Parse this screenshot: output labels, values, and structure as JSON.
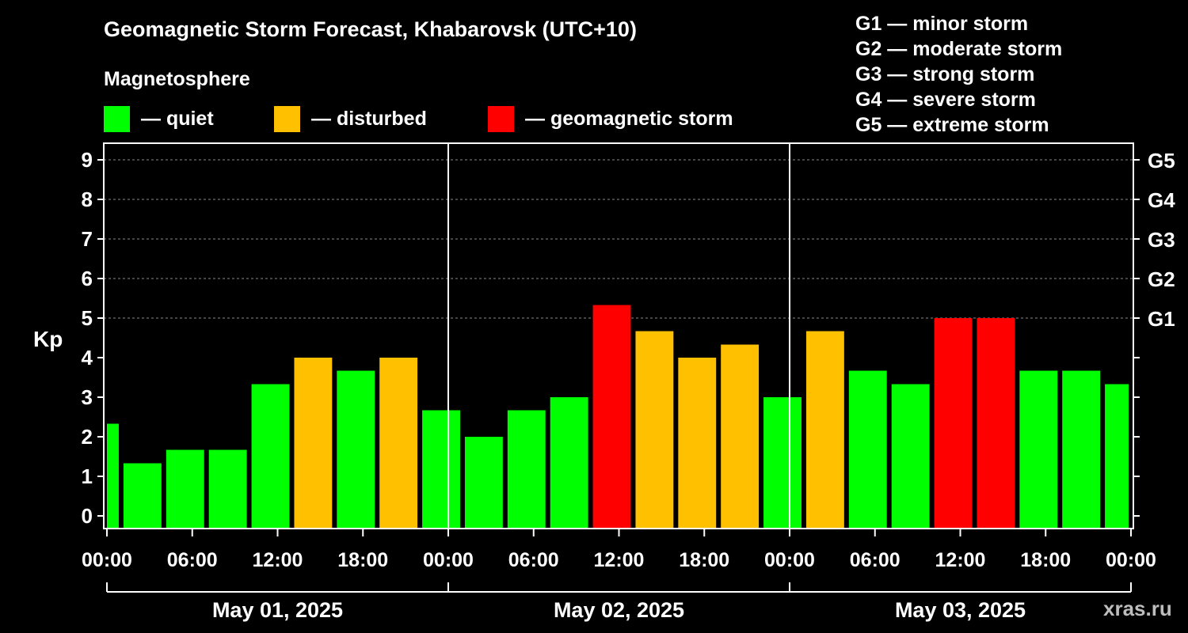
{
  "header": {
    "title": "Geomagnetic Storm Forecast, Khabarovsk (UTC+10)",
    "subtitle": "Magnetosphere"
  },
  "legend": [
    {
      "label": "— quiet",
      "color": "#00ff00"
    },
    {
      "label": "— disturbed",
      "color": "#ffc000"
    },
    {
      "label": "— geomagnetic storm",
      "color": "#ff0000"
    }
  ],
  "g_legend": [
    "G1 — minor storm",
    "G2 — moderate storm",
    "G3 — strong storm",
    "G4 — severe storm",
    "G5 — extreme storm"
  ],
  "watermark": "xras.ru",
  "chart_data": {
    "type": "bar",
    "title": "Geomagnetic Storm Forecast, Khabarovsk (UTC+10)",
    "ylabel": "Kp",
    "ylim": [
      0,
      9
    ],
    "yticks": [
      "0",
      "1",
      "2",
      "3",
      "4",
      "5",
      "6",
      "7",
      "8",
      "9"
    ],
    "right_ticks": [
      {
        "kp": 5,
        "label": "G1"
      },
      {
        "kp": 6,
        "label": "G2"
      },
      {
        "kp": 7,
        "label": "G3"
      },
      {
        "kp": 8,
        "label": "G4"
      },
      {
        "kp": 9,
        "label": "G5"
      }
    ],
    "grid": true,
    "x_range_hours": [
      0,
      72
    ],
    "xtick_labels": [
      "00:00",
      "06:00",
      "12:00",
      "18:00",
      "00:00",
      "06:00",
      "12:00",
      "18:00",
      "00:00",
      "06:00",
      "12:00",
      "18:00",
      "00:00"
    ],
    "days": [
      "May 01, 2025",
      "May 02, 2025",
      "May 03, 2025"
    ],
    "colors": {
      "quiet": "#00ff00",
      "disturbed": "#ffc000",
      "storm": "#ff0000"
    },
    "bars": [
      {
        "start": 0,
        "end": 1,
        "value": 2.33,
        "level": "quiet"
      },
      {
        "start": 1,
        "end": 4,
        "value": 1.33,
        "level": "quiet"
      },
      {
        "start": 4,
        "end": 7,
        "value": 1.67,
        "level": "quiet"
      },
      {
        "start": 7,
        "end": 10,
        "value": 1.67,
        "level": "quiet"
      },
      {
        "start": 10,
        "end": 13,
        "value": 3.33,
        "level": "quiet"
      },
      {
        "start": 13,
        "end": 16,
        "value": 4.0,
        "level": "disturbed"
      },
      {
        "start": 16,
        "end": 19,
        "value": 3.67,
        "level": "quiet"
      },
      {
        "start": 19,
        "end": 22,
        "value": 4.0,
        "level": "disturbed"
      },
      {
        "start": 22,
        "end": 25,
        "value": 2.67,
        "level": "quiet"
      },
      {
        "start": 25,
        "end": 28,
        "value": 2.0,
        "level": "quiet"
      },
      {
        "start": 28,
        "end": 31,
        "value": 2.67,
        "level": "quiet"
      },
      {
        "start": 31,
        "end": 34,
        "value": 3.0,
        "level": "quiet"
      },
      {
        "start": 34,
        "end": 37,
        "value": 5.33,
        "level": "storm"
      },
      {
        "start": 37,
        "end": 40,
        "value": 4.67,
        "level": "disturbed"
      },
      {
        "start": 40,
        "end": 43,
        "value": 4.0,
        "level": "disturbed"
      },
      {
        "start": 43,
        "end": 46,
        "value": 4.33,
        "level": "disturbed"
      },
      {
        "start": 46,
        "end": 49,
        "value": 3.0,
        "level": "quiet"
      },
      {
        "start": 49,
        "end": 52,
        "value": 4.67,
        "level": "disturbed"
      },
      {
        "start": 52,
        "end": 55,
        "value": 3.67,
        "level": "quiet"
      },
      {
        "start": 55,
        "end": 58,
        "value": 3.33,
        "level": "quiet"
      },
      {
        "start": 58,
        "end": 61,
        "value": 5.0,
        "level": "storm"
      },
      {
        "start": 61,
        "end": 64,
        "value": 5.0,
        "level": "storm"
      },
      {
        "start": 64,
        "end": 67,
        "value": 3.67,
        "level": "quiet"
      },
      {
        "start": 67,
        "end": 70,
        "value": 3.67,
        "level": "quiet"
      },
      {
        "start": 70,
        "end": 72,
        "value": 3.33,
        "level": "quiet"
      }
    ]
  }
}
